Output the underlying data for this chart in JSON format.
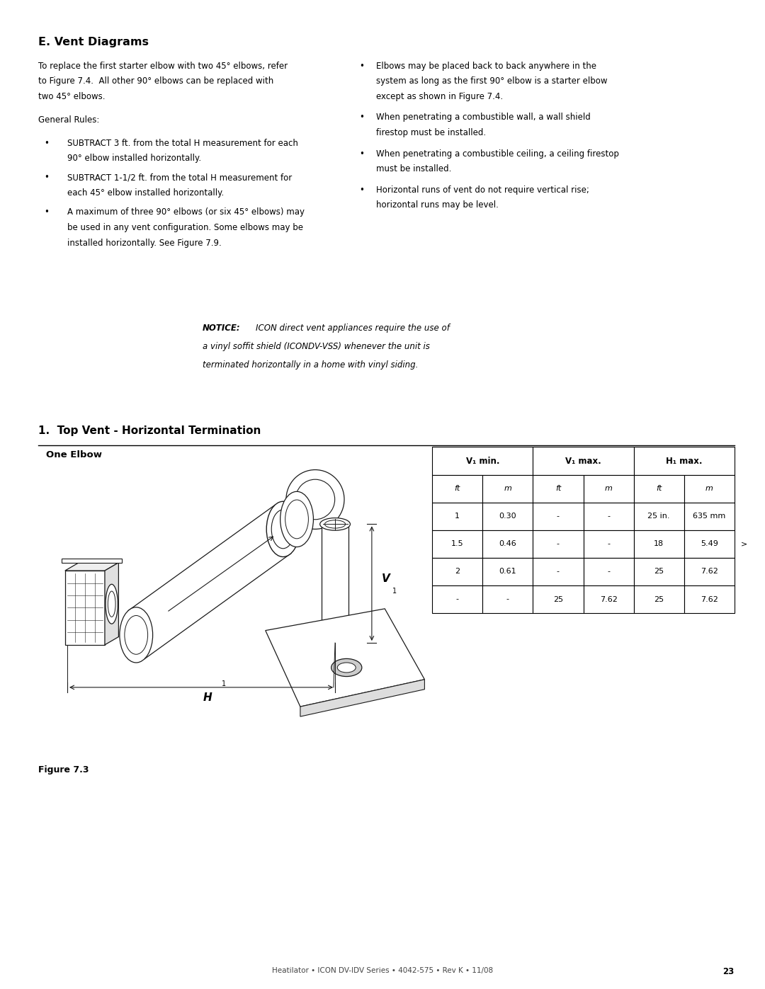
{
  "bg_color": "#ffffff",
  "page_width": 10.8,
  "page_height": 13.97,
  "section_title": "E. Vent Diagrams",
  "intro_lines": [
    "To replace the first starter elbow with two 45° elbows, refer",
    "to Figure 7.4.  All other 90° elbows can be replaced with",
    "two 45° elbows."
  ],
  "general_rules_label": "General Rules:",
  "bullets_left": [
    [
      "SUBTRACT 3 ft. from the total H measurement for each",
      "90° elbow installed horizontally."
    ],
    [
      "SUBTRACT 1-1/2 ft. from the total H measurement for",
      "each 45° elbow installed horizontally."
    ],
    [
      "A maximum of three 90° elbows (or six 45° elbows) may",
      "be used in any vent configuration. Some elbows may be",
      "installed horizontally. See Figure 7.9."
    ]
  ],
  "bullets_right": [
    [
      "Elbows may be placed back to back anywhere in the",
      "system as long as the first 90° elbow is a starter elbow",
      "except as shown in Figure 7.4."
    ],
    [
      "When penetrating a combustible wall, a wall shield",
      "firestop must be installed."
    ],
    [
      "When penetrating a combustible ceiling, a ceiling firestop",
      "must be installed."
    ],
    [
      "Horizontal runs of vent do not require vertical rise;",
      "horizontal runs may be level."
    ]
  ],
  "notice_bold": "NOTICE:",
  "notice_italic_1": " ICON direct vent appliances require the use of",
  "notice_italic_2": "a vinyl soffit shield (ICONDV-VSS) whenever the unit is",
  "notice_italic_3": "terminated horizontally in a home with vinyl siding.",
  "section1_title": "1.  Top Vent - Horizontal Termination",
  "one_elbow_label": "One Elbow",
  "table_col_headers": [
    "V₁ min.",
    "V₁ max.",
    "H₁ max."
  ],
  "table_sub_headers": [
    "ft",
    "m",
    "ft",
    "m",
    "ft",
    "m"
  ],
  "table_rows": [
    [
      "1",
      "0.30",
      "-",
      "-",
      "25 in.",
      "635 mm"
    ],
    [
      "1.5",
      "0.46",
      "-",
      "-",
      "18",
      "5.49"
    ],
    [
      "2",
      "0.61",
      "-",
      "-",
      "25",
      "7.62"
    ],
    [
      "-",
      "-",
      "25",
      "7.62",
      "25",
      "7.62"
    ]
  ],
  "figure_label": "Figure 7.3",
  "footer_text": "Heatilator • ICON DV-IDV Series • 4042-575 • Rev K • 11/08",
  "footer_page": "23",
  "text_fontsize": 8.5,
  "small_fontsize": 8.0,
  "title_fontsize": 11.5,
  "section1_fontsize": 11.0
}
